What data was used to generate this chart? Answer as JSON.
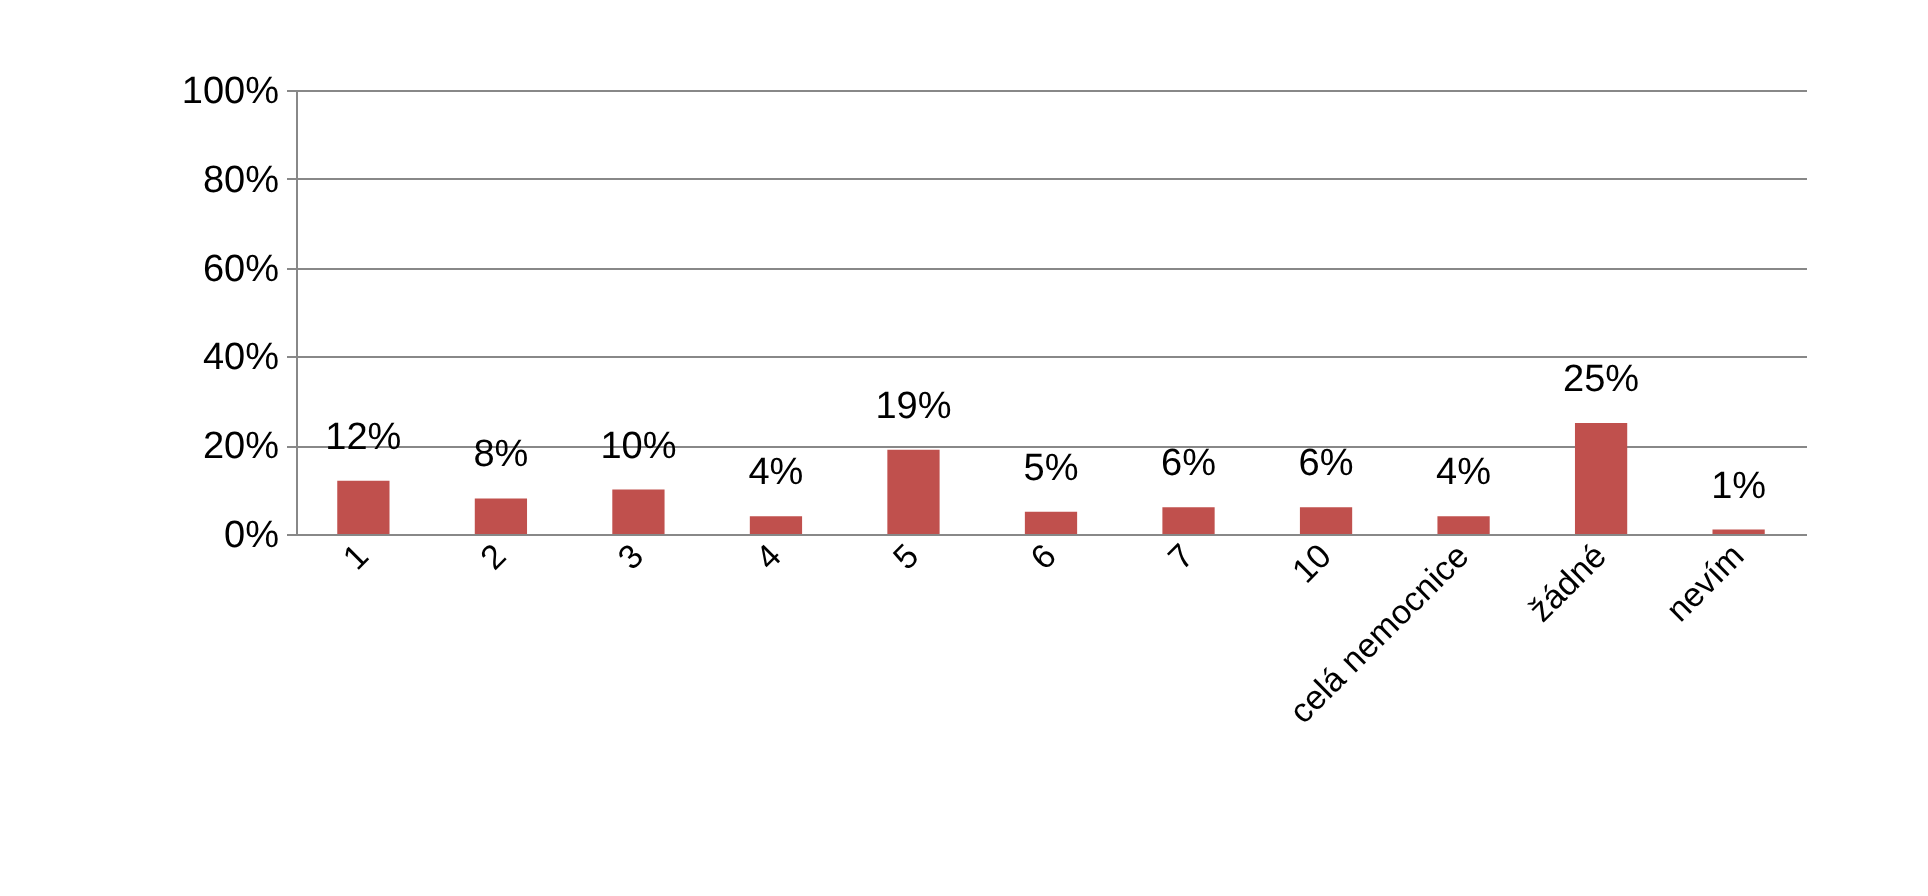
{
  "chart_data": {
    "type": "bar",
    "categories": [
      "1",
      "2",
      "3",
      "4",
      "5",
      "6",
      "7",
      "10",
      "celá nemocnice",
      "žádné",
      "nevím"
    ],
    "values": [
      12,
      8,
      10,
      4,
      19,
      5,
      6,
      6,
      4,
      25,
      1
    ],
    "value_labels": [
      "12%",
      "8%",
      "10%",
      "4%",
      "19%",
      "5%",
      "6%",
      "6%",
      "4%",
      "25%",
      "1%"
    ],
    "color": "#c0504d",
    "ylim": [
      0,
      100
    ],
    "yticks": [
      {
        "value": 0,
        "label": "0%"
      },
      {
        "value": 20,
        "label": "20%"
      },
      {
        "value": 40,
        "label": "40%"
      },
      {
        "value": 60,
        "label": "60%"
      },
      {
        "value": 80,
        "label": "80%"
      },
      {
        "value": 100,
        "label": "100%"
      }
    ],
    "grid": "y"
  }
}
